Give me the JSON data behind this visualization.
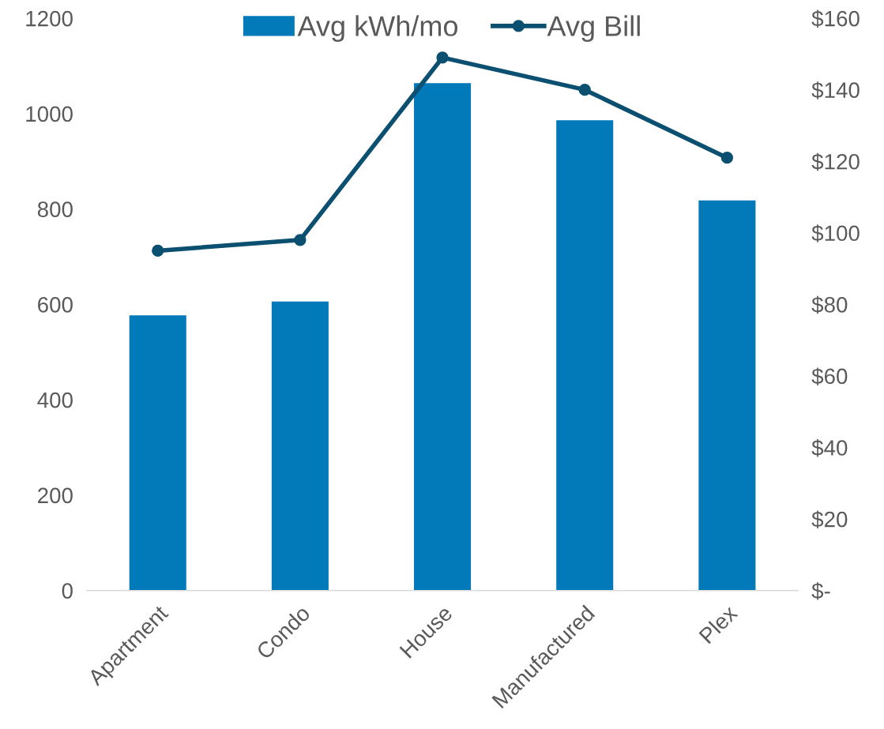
{
  "chart_data": {
    "type": "bar",
    "categories": [
      "Apartment",
      "Condo",
      "House",
      "Manufactured",
      "Plex"
    ],
    "series": [
      {
        "name": "Avg kWh/mo",
        "color": "#0279b8",
        "values": [
          577,
          606,
          1064,
          986,
          818
        ]
      },
      {
        "name": "Avg Bill",
        "type": "line",
        "axis": "y2",
        "color": "#0b4f71",
        "marker": "circle",
        "values": [
          95,
          98,
          149,
          140,
          121
        ]
      }
    ],
    "ylim": [
      0,
      1200
    ],
    "yticks": [
      0,
      200,
      400,
      600,
      800,
      1000,
      1200
    ],
    "y2lim": [
      0,
      160
    ],
    "y2ticks": [
      {
        "value": 0,
        "label": "$-"
      },
      {
        "value": 20,
        "label": "$20"
      },
      {
        "value": 40,
        "label": "$40"
      },
      {
        "value": 60,
        "label": "$60"
      },
      {
        "value": 80,
        "label": "$80"
      },
      {
        "value": 100,
        "label": "$100"
      },
      {
        "value": 120,
        "label": "$120"
      },
      {
        "value": 140,
        "label": "$140"
      },
      {
        "value": 160,
        "label": "$160"
      }
    ],
    "grid": false,
    "legend": "top"
  }
}
